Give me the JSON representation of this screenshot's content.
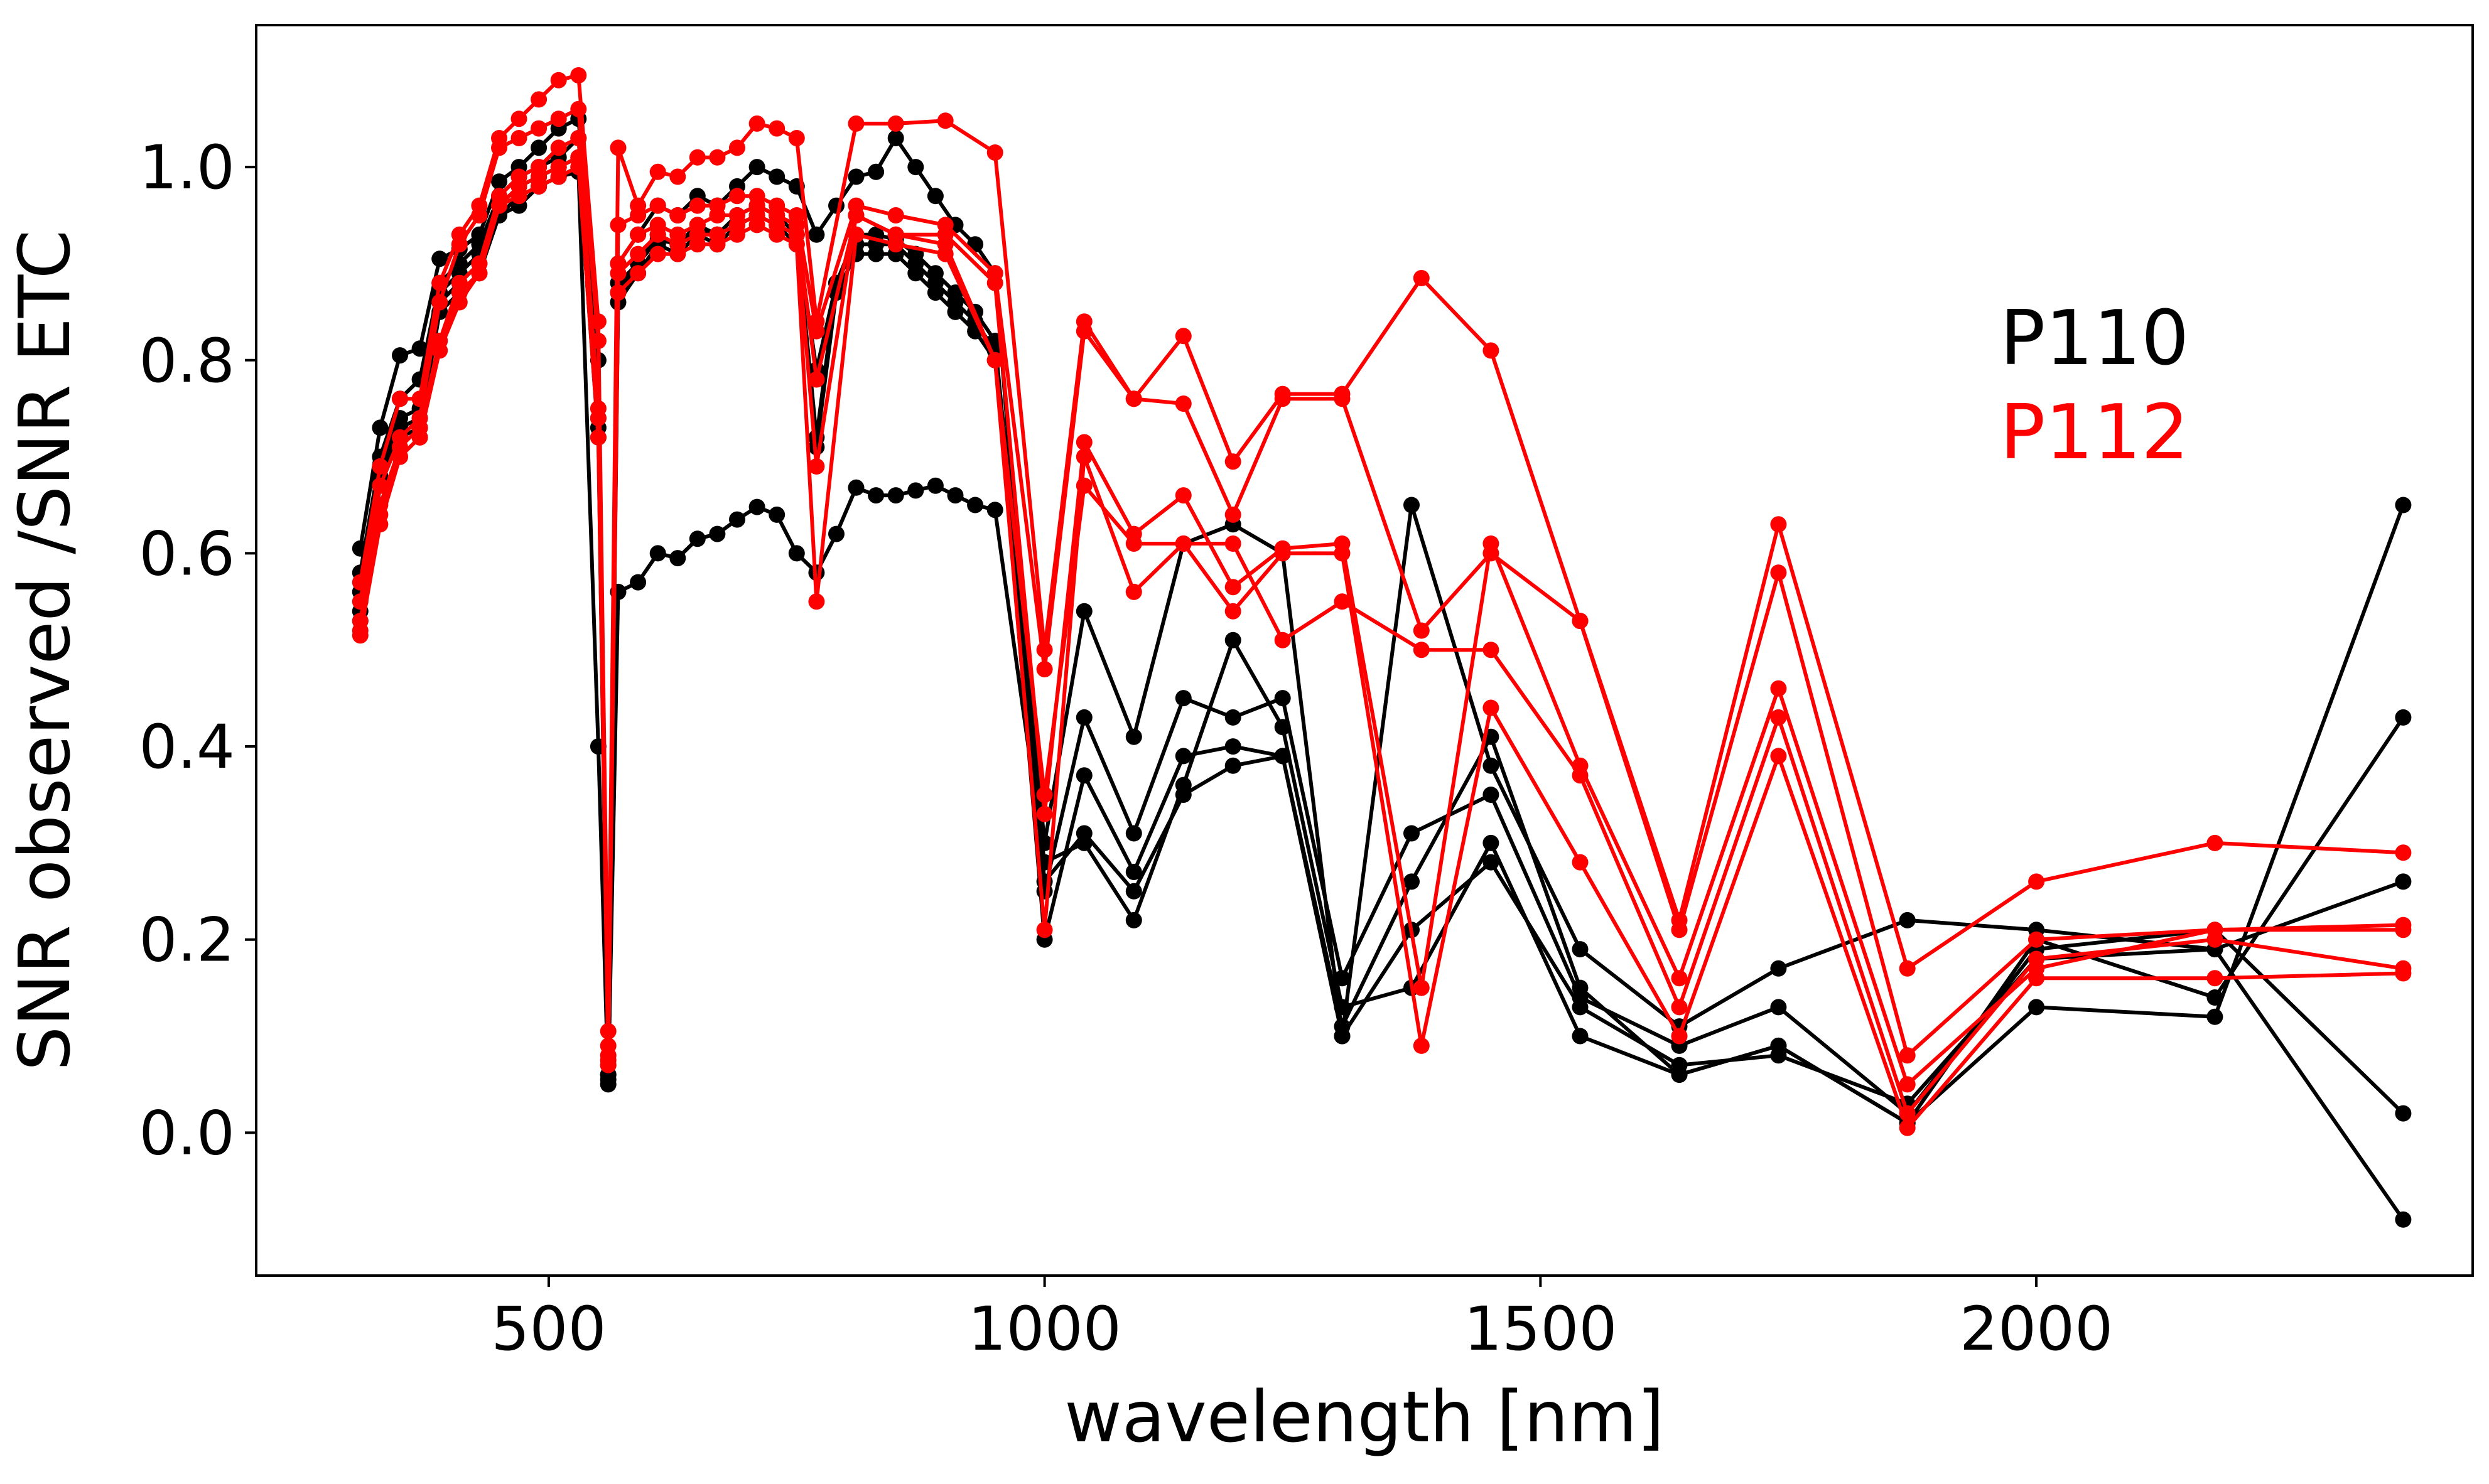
{
  "chart_data": {
    "type": "line",
    "title": "",
    "xlabel": "wavelength [nm]",
    "ylabel": "SNR observed /SNR ETC",
    "xlim": [
      205,
      2440
    ],
    "ylim": [
      -0.148,
      1.147
    ],
    "xticks": [
      500,
      1000,
      1500,
      2000
    ],
    "xtick_labels": [
      "500",
      "1000",
      "1500",
      "2000"
    ],
    "yticks": [
      0.0,
      0.2,
      0.4,
      0.6,
      0.8,
      1.0
    ],
    "ytick_labels": [
      "0.0",
      "0.2",
      "0.4",
      "0.6",
      "0.8",
      "1.0"
    ],
    "grid": false,
    "legend": [
      {
        "label": "P110",
        "color": "#000000"
      },
      {
        "label": "P112",
        "color": "#ff0000"
      }
    ],
    "series": [
      {
        "name": "P110",
        "color": "#000000",
        "x": [
          310,
          330,
          350,
          370,
          390,
          410,
          430,
          450,
          470,
          490,
          510,
          530,
          550,
          560,
          570,
          590,
          610,
          630,
          650,
          670,
          690,
          710,
          730,
          750,
          770,
          790,
          810,
          830,
          850,
          870,
          890,
          910,
          930,
          950,
          1000,
          1040,
          1090,
          1140,
          1190,
          1240,
          1300,
          1370,
          1450,
          1540,
          1640,
          1740,
          1870,
          2000,
          2180,
          2370
        ],
        "y": [
          0.605,
          0.73,
          0.805,
          0.812,
          0.905,
          0.915,
          0.93,
          0.985,
          1.0,
          1.02,
          1.04,
          1.05,
          0.8,
          0.06,
          0.88,
          0.9,
          0.925,
          0.92,
          0.935,
          0.93,
          0.95,
          0.96,
          0.95,
          0.93,
          0.79,
          0.88,
          0.93,
          0.93,
          0.925,
          0.91,
          0.89,
          0.87,
          0.85,
          0.82,
          0.3,
          0.54,
          0.41,
          0.61,
          0.63,
          0.6,
          0.1,
          0.65,
          0.38,
          0.19,
          0.11,
          0.17,
          0.22,
          0.21,
          0.19,
          -0.09
        ]
      },
      {
        "name": "P110",
        "color": "#000000",
        "x": [
          310,
          330,
          350,
          370,
          390,
          410,
          430,
          450,
          470,
          490,
          510,
          530,
          550,
          560,
          570,
          590,
          610,
          630,
          650,
          670,
          690,
          710,
          730,
          750,
          770,
          790,
          810,
          830,
          850,
          870,
          890,
          910,
          930,
          950,
          1000,
          1040,
          1090,
          1140,
          1190,
          1240,
          1300,
          1370,
          1450,
          1540,
          1640,
          1740,
          1870,
          2000,
          2180,
          2370
        ],
        "y": [
          0.58,
          0.7,
          0.76,
          0.78,
          0.88,
          0.9,
          0.92,
          0.97,
          0.99,
          1.0,
          1.01,
          1.03,
          0.74,
          0.07,
          0.9,
          0.93,
          0.96,
          0.95,
          0.97,
          0.96,
          0.98,
          1.0,
          0.99,
          0.98,
          0.93,
          0.96,
          0.99,
          0.995,
          1.03,
          1.0,
          0.97,
          0.94,
          0.92,
          0.89,
          0.25,
          0.43,
          0.31,
          0.45,
          0.43,
          0.45,
          0.16,
          0.31,
          0.35,
          0.14,
          0.09,
          0.13,
          0.02,
          0.19,
          0.21,
          0.02
        ]
      },
      {
        "name": "P110",
        "color": "#000000",
        "x": [
          310,
          330,
          350,
          370,
          390,
          410,
          430,
          450,
          470,
          490,
          510,
          530,
          550,
          560,
          570,
          590,
          610,
          630,
          650,
          670,
          690,
          710,
          730,
          750,
          770,
          790,
          810,
          830,
          850,
          870,
          890,
          910,
          930,
          950,
          1000,
          1040,
          1090,
          1140,
          1190,
          1240,
          1300,
          1370,
          1450,
          1540,
          1640,
          1740,
          1870,
          2000,
          2180,
          2370
        ],
        "y": [
          0.56,
          0.69,
          0.74,
          0.75,
          0.87,
          0.89,
          0.91,
          0.96,
          0.98,
          0.99,
          1.0,
          1.01,
          0.73,
          0.06,
          0.87,
          0.9,
          0.93,
          0.92,
          0.94,
          0.93,
          0.95,
          0.96,
          0.95,
          0.93,
          0.72,
          0.88,
          0.92,
          0.92,
          0.92,
          0.9,
          0.88,
          0.86,
          0.84,
          0.81,
          0.2,
          0.37,
          0.27,
          0.39,
          0.4,
          0.39,
          0.11,
          0.26,
          0.41,
          0.15,
          0.06,
          0.09,
          0.01,
          0.2,
          0.14,
          0.43
        ]
      },
      {
        "name": "P110",
        "color": "#000000",
        "x": [
          310,
          330,
          350,
          370,
          390,
          410,
          430,
          450,
          470,
          490,
          510,
          530,
          550,
          560,
          570,
          590,
          610,
          630,
          650,
          670,
          690,
          710,
          730,
          750,
          770,
          790,
          810,
          830,
          850,
          870,
          890,
          910,
          930,
          950,
          1000,
          1040,
          1090,
          1140,
          1190,
          1240,
          1300,
          1370,
          1450,
          1540,
          1640,
          1740,
          1870,
          2000,
          2180,
          2370
        ],
        "y": [
          0.54,
          0.68,
          0.73,
          0.74,
          0.86,
          0.88,
          0.9,
          0.95,
          0.97,
          0.98,
          0.99,
          1.0,
          0.72,
          0.055,
          0.86,
          0.89,
          0.92,
          0.91,
          0.93,
          0.92,
          0.94,
          0.95,
          0.94,
          0.92,
          0.71,
          0.87,
          0.91,
          0.91,
          0.91,
          0.89,
          0.87,
          0.85,
          0.83,
          0.8,
          0.26,
          0.31,
          0.25,
          0.35,
          0.38,
          0.39,
          0.1,
          0.21,
          0.28,
          0.13,
          0.07,
          0.08,
          0.03,
          0.18,
          0.19,
          0.26
        ]
      },
      {
        "name": "P110",
        "color": "#000000",
        "x": [
          310,
          330,
          350,
          370,
          390,
          410,
          430,
          450,
          470,
          490,
          510,
          530,
          550,
          560,
          570,
          590,
          610,
          630,
          650,
          670,
          690,
          710,
          730,
          750,
          770,
          790,
          810,
          830,
          850,
          870,
          890,
          910,
          930,
          950,
          1000,
          1040,
          1090,
          1140,
          1190,
          1240,
          1300,
          1370,
          1450,
          1540,
          1640,
          1740,
          1870,
          2000,
          2180,
          2370
        ],
        "y": [
          0.53,
          0.67,
          0.72,
          0.73,
          0.85,
          0.87,
          0.89,
          0.95,
          0.96,
          0.98,
          0.99,
          0.995,
          0.4,
          0.05,
          0.56,
          0.57,
          0.6,
          0.595,
          0.615,
          0.62,
          0.635,
          0.648,
          0.64,
          0.6,
          0.58,
          0.62,
          0.668,
          0.66,
          0.66,
          0.665,
          0.67,
          0.66,
          0.65,
          0.645,
          0.28,
          0.3,
          0.22,
          0.36,
          0.51,
          0.42,
          0.13,
          0.15,
          0.3,
          0.1,
          0.06,
          0.09,
          0.01,
          0.13,
          0.12,
          0.65
        ]
      },
      {
        "name": "P112",
        "color": "#ff0000",
        "x": [
          310,
          330,
          350,
          370,
          390,
          410,
          430,
          450,
          470,
          490,
          510,
          530,
          550,
          560,
          570,
          590,
          610,
          630,
          650,
          670,
          690,
          710,
          730,
          750,
          770,
          810,
          850,
          900,
          950,
          1000,
          1040,
          1090,
          1140,
          1190,
          1240,
          1300,
          1380,
          1450,
          1540,
          1640,
          1740,
          1870,
          2000,
          2180,
          2370
        ],
        "y": [
          0.57,
          0.69,
          0.76,
          0.76,
          0.88,
          0.93,
          0.96,
          1.03,
          1.05,
          1.07,
          1.09,
          1.095,
          0.84,
          0.105,
          1.02,
          0.96,
          0.995,
          0.99,
          1.01,
          1.01,
          1.02,
          1.045,
          1.04,
          1.03,
          0.84,
          1.045,
          1.045,
          1.048,
          1.015,
          0.5,
          0.84,
          0.76,
          0.825,
          0.695,
          0.765,
          0.765,
          0.885,
          0.81,
          0.53,
          0.22,
          0.63,
          0.17,
          0.26,
          0.3,
          0.29
        ]
      },
      {
        "name": "P112",
        "color": "#ff0000",
        "x": [
          310,
          330,
          350,
          370,
          390,
          410,
          430,
          450,
          470,
          490,
          510,
          530,
          550,
          560,
          570,
          590,
          610,
          630,
          650,
          670,
          690,
          710,
          730,
          750,
          770,
          810,
          850,
          900,
          950,
          1000,
          1040,
          1090,
          1140,
          1190,
          1240,
          1300,
          1380,
          1450,
          1540,
          1640,
          1740,
          1870,
          2000,
          2180,
          2370
        ],
        "y": [
          0.55,
          0.67,
          0.72,
          0.74,
          0.86,
          0.92,
          0.95,
          1.02,
          1.03,
          1.04,
          1.05,
          1.06,
          0.82,
          0.09,
          0.94,
          0.95,
          0.96,
          0.95,
          0.96,
          0.96,
          0.97,
          0.97,
          0.96,
          0.95,
          0.83,
          0.96,
          0.95,
          0.94,
          0.89,
          0.48,
          0.83,
          0.76,
          0.755,
          0.64,
          0.76,
          0.76,
          0.52,
          0.6,
          0.53,
          0.21,
          0.58,
          0.08,
          0.2,
          0.21,
          0.215
        ]
      },
      {
        "name": "P112",
        "color": "#ff0000",
        "x": [
          310,
          330,
          350,
          370,
          390,
          410,
          430,
          450,
          470,
          490,
          510,
          530,
          550,
          560,
          570,
          590,
          610,
          630,
          650,
          670,
          690,
          710,
          730,
          750,
          770,
          810,
          850,
          900,
          950,
          1000,
          1040,
          1090,
          1140,
          1190,
          1240,
          1300,
          1380,
          1450,
          1540,
          1640,
          1740,
          1870,
          2000,
          2180,
          2370
        ],
        "y": [
          0.53,
          0.65,
          0.71,
          0.73,
          0.82,
          0.88,
          0.9,
          0.97,
          0.99,
          1.0,
          1.02,
          1.03,
          0.75,
          0.08,
          0.9,
          0.93,
          0.94,
          0.93,
          0.94,
          0.95,
          0.95,
          0.96,
          0.95,
          0.94,
          0.78,
          0.95,
          0.93,
          0.93,
          0.88,
          0.33,
          0.715,
          0.62,
          0.66,
          0.565,
          0.605,
          0.61,
          0.15,
          0.61,
          0.38,
          0.16,
          0.46,
          0.05,
          0.17,
          0.21,
          0.21
        ]
      },
      {
        "name": "P112",
        "color": "#ff0000",
        "x": [
          310,
          330,
          350,
          370,
          390,
          410,
          430,
          450,
          470,
          490,
          510,
          530,
          550,
          560,
          570,
          590,
          610,
          630,
          650,
          670,
          690,
          710,
          730,
          750,
          770,
          810,
          850,
          900,
          950,
          1000,
          1040,
          1090,
          1140,
          1190,
          1240,
          1300,
          1380,
          1450,
          1540,
          1640,
          1740,
          1870,
          2000,
          2180,
          2370
        ],
        "y": [
          0.52,
          0.64,
          0.7,
          0.72,
          0.82,
          0.87,
          0.89,
          0.96,
          0.98,
          0.99,
          1.0,
          1.01,
          0.74,
          0.075,
          0.89,
          0.91,
          0.93,
          0.92,
          0.93,
          0.93,
          0.94,
          0.95,
          0.94,
          0.93,
          0.69,
          0.95,
          0.93,
          0.92,
          0.8,
          0.21,
          0.7,
          0.56,
          0.61,
          0.61,
          0.51,
          0.55,
          0.5,
          0.5,
          0.37,
          0.13,
          0.43,
          0.02,
          0.18,
          0.2,
          0.17
        ]
      },
      {
        "name": "P112",
        "color": "#ff0000",
        "x": [
          310,
          330,
          350,
          370,
          390,
          410,
          430,
          450,
          470,
          490,
          510,
          530,
          550,
          560,
          570,
          590,
          610,
          630,
          650,
          670,
          690,
          710,
          730,
          750,
          770,
          810,
          850,
          900,
          950,
          1000,
          1040,
          1090,
          1140,
          1190,
          1240,
          1300,
          1380,
          1450,
          1540,
          1640,
          1740,
          1870,
          2000,
          2180,
          2370
        ],
        "y": [
          0.515,
          0.63,
          0.7,
          0.72,
          0.81,
          0.86,
          0.89,
          0.96,
          0.97,
          0.98,
          0.99,
          1.0,
          0.72,
          0.07,
          0.87,
          0.89,
          0.91,
          0.91,
          0.92,
          0.92,
          0.93,
          0.94,
          0.93,
          0.92,
          0.55,
          0.93,
          0.92,
          0.91,
          0.8,
          0.35,
          0.67,
          0.61,
          0.61,
          0.54,
          0.6,
          0.6,
          0.09,
          0.44,
          0.28,
          0.1,
          0.39,
          0.005,
          0.16,
          0.16,
          0.165
        ]
      }
    ]
  }
}
